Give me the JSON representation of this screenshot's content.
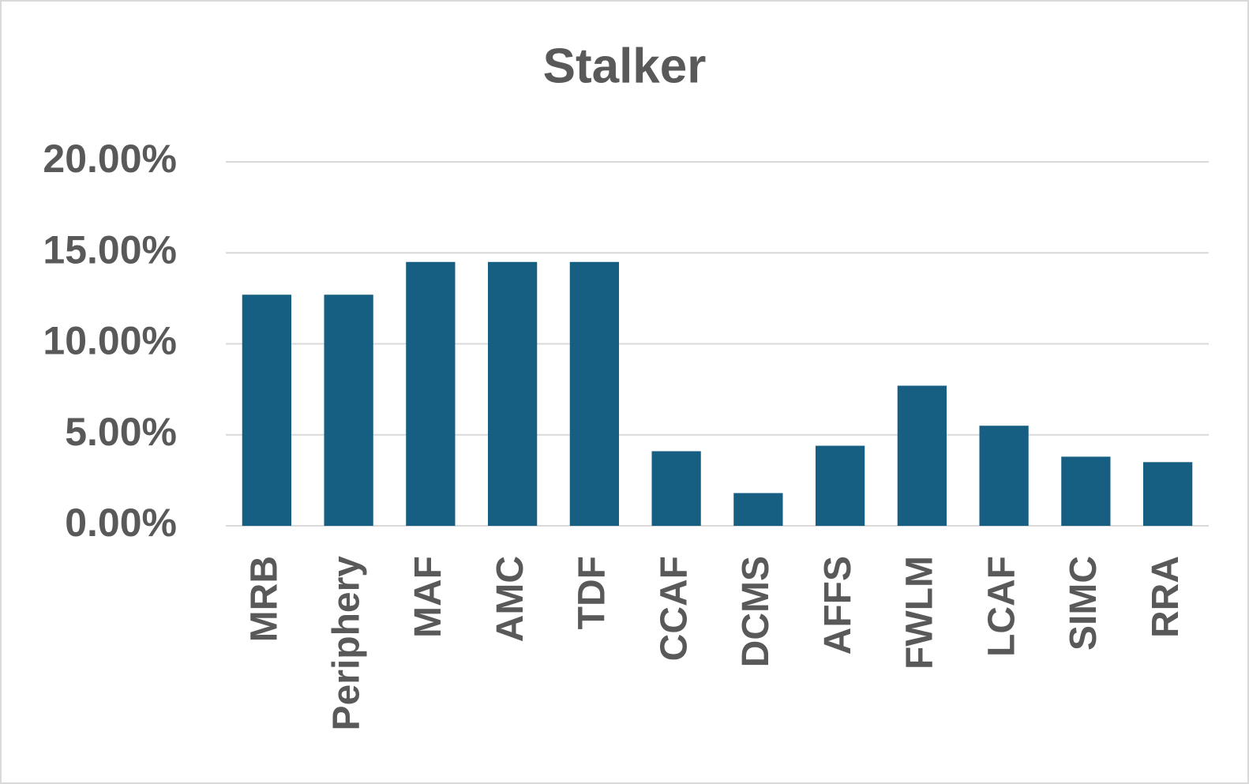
{
  "chart_data": {
    "type": "bar",
    "title": "Stalker",
    "categories": [
      "MRB",
      "Periphery",
      "MAF",
      "AMC",
      "TDF",
      "CCAF",
      "DCMS",
      "AFFS",
      "FWLM",
      "LCAF",
      "SIMC",
      "RRA"
    ],
    "values": [
      12.7,
      12.7,
      14.5,
      14.5,
      14.5,
      4.1,
      1.8,
      4.4,
      7.7,
      5.5,
      3.8,
      3.5
    ],
    "color": "#175f82",
    "ylim": [
      0,
      20
    ],
    "yticks": [
      {
        "value": 0,
        "label": "0.00%"
      },
      {
        "value": 5,
        "label": "5.00%"
      },
      {
        "value": 10,
        "label": "10.00%"
      },
      {
        "value": 15,
        "label": "15.00%"
      },
      {
        "value": 20,
        "label": "20.00%"
      }
    ],
    "grid": true
  }
}
